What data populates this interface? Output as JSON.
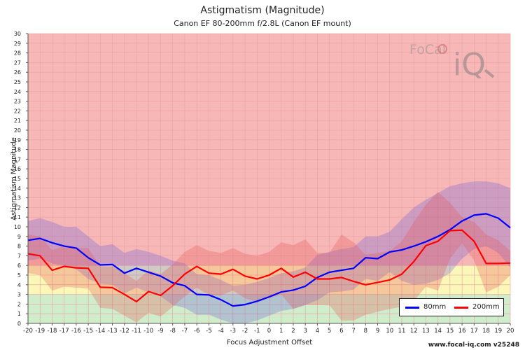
{
  "title": "Astigmatism (Magnitude)",
  "subtitle": "Canon EF 80-200mm f/2.8L (Canon EF mount)",
  "watermark": "www.focal-iq.com  v25248",
  "logo": {
    "text_top": "FoCal",
    "text_bottom": "iQ"
  },
  "colors": {
    "zone_red": "#f7b7b7",
    "zone_yellow": "#fbf7b9",
    "zone_green": "#cfeccb",
    "grid": "#e8a0a0",
    "series_80": "#0000ff",
    "series_200": "#ff0000"
  },
  "chart_data": {
    "type": "line",
    "xlabel": "Focus Adjustment Offset",
    "ylabel": "Astigmatism Magnitude",
    "xlim": [
      -20,
      20
    ],
    "ylim": [
      0,
      30
    ],
    "x_ticks": [
      "-20",
      "-19",
      "-18",
      "-17",
      "-16",
      "-15",
      "-14",
      "-13",
      "-12",
      "-11",
      "-10",
      "-9",
      "-8",
      "-7",
      "-6",
      "-5",
      "-4",
      "-3",
      "-2",
      "-1",
      "0",
      "1",
      "2",
      "3",
      "4",
      "5",
      "6",
      "7",
      "8",
      "9",
      "10",
      "11",
      "12",
      "13",
      "14",
      "15",
      "16",
      "17",
      "18",
      "19",
      "20"
    ],
    "y_ticks": [
      "0",
      "1",
      "2",
      "3",
      "4",
      "5",
      "6",
      "7",
      "8",
      "9",
      "10",
      "11",
      "12",
      "13",
      "14",
      "15",
      "16",
      "17",
      "18",
      "19",
      "20",
      "21",
      "22",
      "23",
      "24",
      "25",
      "26",
      "27",
      "28",
      "29",
      "30"
    ],
    "zones": [
      {
        "from": 0,
        "to": 3,
        "color": "green"
      },
      {
        "from": 3,
        "to": 6,
        "color": "yellow"
      },
      {
        "from": 6,
        "to": 30,
        "color": "red"
      }
    ],
    "grid": true,
    "legend_position": "bottom-right",
    "x": [
      -20,
      -19,
      -18,
      -17,
      -16,
      -15,
      -14,
      -13,
      -12,
      -11,
      -10,
      -9,
      -8,
      -7,
      -6,
      -5,
      -4,
      -3,
      -2,
      -1,
      0,
      1,
      2,
      3,
      4,
      5,
      6,
      7,
      8,
      9,
      10,
      11,
      12,
      13,
      14,
      15,
      16,
      17,
      18,
      19,
      20
    ],
    "series": [
      {
        "name": "80mm",
        "values": [
          8.6,
          8.8,
          8.35,
          8.0,
          7.8,
          6.8,
          6.05,
          6.1,
          5.2,
          5.7,
          5.3,
          4.9,
          4.2,
          3.9,
          3.0,
          2.95,
          2.45,
          1.8,
          1.95,
          2.3,
          2.75,
          3.25,
          3.45,
          3.85,
          4.75,
          5.3,
          5.5,
          5.7,
          6.8,
          6.7,
          7.4,
          7.6,
          8.0,
          8.45,
          9.0,
          9.7,
          10.6,
          11.2,
          11.35,
          10.9,
          9.9
        ],
        "band_upper": [
          10.6,
          10.9,
          10.5,
          10.0,
          10.0,
          9.0,
          8.0,
          8.2,
          7.3,
          7.7,
          7.4,
          7.0,
          6.5,
          6.2,
          5.1,
          5.0,
          4.5,
          3.9,
          4.0,
          4.3,
          4.7,
          5.2,
          5.4,
          5.8,
          7.1,
          7.4,
          7.7,
          7.9,
          9.0,
          9.0,
          9.5,
          10.8,
          12.0,
          12.8,
          13.5,
          14.2,
          14.5,
          14.7,
          14.7,
          14.5,
          14.0
        ],
        "band_lower": [
          6.5,
          6.7,
          6.2,
          6.0,
          5.6,
          4.6,
          4.1,
          4.0,
          3.1,
          3.7,
          3.2,
          2.8,
          1.9,
          1.6,
          0.9,
          0.9,
          0.4,
          0.0,
          0.0,
          0.3,
          0.8,
          1.3,
          1.5,
          1.9,
          2.4,
          3.2,
          3.3,
          3.5,
          4.6,
          4.4,
          5.3,
          4.4,
          4.0,
          4.1,
          4.5,
          5.2,
          6.7,
          7.7,
          8.0,
          7.3,
          5.8
        ]
      },
      {
        "name": "200mm",
        "values": [
          7.2,
          7.0,
          5.5,
          5.9,
          5.75,
          5.7,
          3.75,
          3.7,
          3.0,
          2.25,
          3.3,
          2.9,
          3.9,
          5.1,
          5.9,
          5.2,
          5.1,
          5.6,
          4.9,
          4.6,
          5.0,
          5.7,
          4.8,
          5.3,
          4.6,
          4.6,
          4.75,
          4.35,
          4.0,
          4.25,
          4.5,
          5.1,
          6.4,
          8.05,
          8.5,
          9.6,
          9.65,
          8.5,
          6.2,
          6.2,
          6.25
        ],
        "band_upper": [
          9.2,
          9.0,
          7.6,
          8.0,
          7.8,
          7.8,
          5.9,
          5.9,
          5.2,
          4.4,
          5.5,
          5.1,
          6.1,
          7.4,
          8.1,
          7.5,
          7.3,
          7.8,
          7.2,
          7.0,
          7.4,
          8.4,
          8.1,
          8.7,
          7.3,
          7.3,
          9.2,
          8.4,
          7.1,
          7.3,
          7.5,
          8.5,
          10.5,
          12.3,
          13.6,
          12.5,
          11.0,
          10.5,
          9.2,
          8.6,
          7.5
        ],
        "band_lower": [
          5.2,
          5.0,
          3.4,
          3.8,
          3.7,
          3.6,
          1.6,
          1.5,
          0.8,
          0.1,
          1.1,
          0.7,
          1.7,
          2.8,
          3.7,
          2.9,
          2.9,
          3.4,
          2.6,
          2.2,
          2.6,
          3.0,
          1.5,
          1.9,
          1.9,
          1.9,
          0.3,
          0.3,
          0.9,
          1.2,
          1.5,
          1.7,
          2.3,
          3.8,
          3.4,
          6.7,
          8.3,
          6.5,
          3.2,
          3.8,
          5.0
        ]
      }
    ]
  }
}
